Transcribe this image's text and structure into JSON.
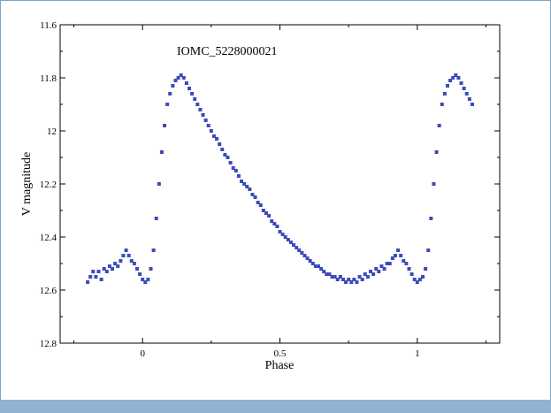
{
  "chart_data": {
    "type": "scatter",
    "title": "IOMC_5228000021",
    "xlabel": "Phase",
    "ylabel": "V magnitude",
    "xlim": [
      -0.3,
      1.3
    ],
    "ylim": [
      11.6,
      12.8
    ],
    "y_inverted": true,
    "x_ticks": [
      "0",
      "0.5",
      "1"
    ],
    "x_tick_values": [
      0,
      0.5,
      1
    ],
    "y_ticks": [
      "11.6",
      "11.8",
      "12",
      "12.2",
      "12.4",
      "12.6",
      "12.8"
    ],
    "y_tick_values": [
      11.6,
      11.8,
      12.0,
      12.2,
      12.4,
      12.6,
      12.8
    ],
    "grid": false,
    "marker_color": "#3b4bb8",
    "series": [
      {
        "points": [
          [
            -0.2,
            12.57
          ],
          [
            -0.19,
            12.55
          ],
          [
            -0.18,
            12.53
          ],
          [
            -0.17,
            12.55
          ],
          [
            -0.16,
            12.53
          ],
          [
            -0.15,
            12.56
          ],
          [
            -0.14,
            12.52
          ],
          [
            -0.13,
            12.53
          ],
          [
            -0.12,
            12.51
          ],
          [
            -0.11,
            12.52
          ],
          [
            -0.1,
            12.5
          ],
          [
            -0.09,
            12.51
          ],
          [
            -0.08,
            12.49
          ],
          [
            -0.07,
            12.47
          ],
          [
            -0.06,
            12.45
          ],
          [
            -0.05,
            12.47
          ],
          [
            -0.04,
            12.49
          ],
          [
            -0.03,
            12.5
          ],
          [
            -0.02,
            12.52
          ],
          [
            -0.01,
            12.54
          ],
          [
            0.0,
            12.56
          ],
          [
            0.01,
            12.57
          ],
          [
            0.02,
            12.56
          ],
          [
            0.03,
            12.52
          ],
          [
            0.04,
            12.45
          ],
          [
            0.05,
            12.33
          ],
          [
            0.06,
            12.2
          ],
          [
            0.07,
            12.08
          ],
          [
            0.08,
            11.98
          ],
          [
            0.09,
            11.9
          ],
          [
            0.1,
            11.86
          ],
          [
            0.11,
            11.83
          ],
          [
            0.12,
            11.81
          ],
          [
            0.13,
            11.8
          ],
          [
            0.14,
            11.79
          ],
          [
            0.15,
            11.8
          ],
          [
            0.16,
            11.82
          ],
          [
            0.17,
            11.84
          ],
          [
            0.18,
            11.86
          ],
          [
            0.19,
            11.88
          ],
          [
            0.2,
            11.9
          ],
          [
            0.21,
            11.92
          ],
          [
            0.22,
            11.94
          ],
          [
            0.23,
            11.96
          ],
          [
            0.24,
            11.98
          ],
          [
            0.25,
            12.0
          ],
          [
            0.26,
            12.02
          ],
          [
            0.27,
            12.03
          ],
          [
            0.28,
            12.05
          ],
          [
            0.29,
            12.07
          ],
          [
            0.3,
            12.09
          ],
          [
            0.31,
            12.1
          ],
          [
            0.32,
            12.12
          ],
          [
            0.33,
            12.14
          ],
          [
            0.34,
            12.15
          ],
          [
            0.35,
            12.17
          ],
          [
            0.36,
            12.19
          ],
          [
            0.37,
            12.2
          ],
          [
            0.38,
            12.21
          ],
          [
            0.39,
            12.22
          ],
          [
            0.4,
            12.24
          ],
          [
            0.41,
            12.25
          ],
          [
            0.42,
            12.27
          ],
          [
            0.43,
            12.28
          ],
          [
            0.44,
            12.3
          ],
          [
            0.45,
            12.31
          ],
          [
            0.46,
            12.32
          ],
          [
            0.47,
            12.34
          ],
          [
            0.48,
            12.35
          ],
          [
            0.49,
            12.36
          ],
          [
            0.5,
            12.38
          ],
          [
            0.51,
            12.39
          ],
          [
            0.52,
            12.4
          ],
          [
            0.53,
            12.41
          ],
          [
            0.54,
            12.42
          ],
          [
            0.55,
            12.43
          ],
          [
            0.56,
            12.44
          ],
          [
            0.57,
            12.45
          ],
          [
            0.58,
            12.46
          ],
          [
            0.59,
            12.47
          ],
          [
            0.6,
            12.48
          ],
          [
            0.61,
            12.49
          ],
          [
            0.62,
            12.5
          ],
          [
            0.63,
            12.51
          ],
          [
            0.64,
            12.51
          ],
          [
            0.65,
            12.52
          ],
          [
            0.66,
            12.53
          ],
          [
            0.67,
            12.54
          ],
          [
            0.68,
            12.54
          ],
          [
            0.69,
            12.55
          ],
          [
            0.7,
            12.55
          ],
          [
            0.71,
            12.56
          ],
          [
            0.72,
            12.55
          ],
          [
            0.73,
            12.56
          ],
          [
            0.74,
            12.57
          ],
          [
            0.75,
            12.56
          ],
          [
            0.76,
            12.57
          ],
          [
            0.77,
            12.56
          ],
          [
            0.78,
            12.57
          ],
          [
            0.79,
            12.55
          ],
          [
            0.8,
            12.56
          ],
          [
            0.81,
            12.54
          ],
          [
            0.82,
            12.55
          ],
          [
            0.83,
            12.53
          ],
          [
            0.84,
            12.54
          ],
          [
            0.85,
            12.52
          ],
          [
            0.86,
            12.53
          ],
          [
            0.87,
            12.51
          ],
          [
            0.88,
            12.52
          ],
          [
            0.89,
            12.5
          ],
          [
            0.9,
            12.5
          ],
          [
            0.91,
            12.48
          ],
          [
            0.92,
            12.47
          ],
          [
            0.93,
            12.45
          ],
          [
            0.94,
            12.47
          ],
          [
            0.95,
            12.49
          ],
          [
            0.96,
            12.5
          ],
          [
            0.97,
            12.52
          ],
          [
            0.98,
            12.54
          ],
          [
            0.99,
            12.56
          ],
          [
            1.0,
            12.57
          ],
          [
            1.01,
            12.56
          ],
          [
            1.02,
            12.55
          ],
          [
            1.03,
            12.52
          ],
          [
            1.04,
            12.45
          ],
          [
            1.05,
            12.33
          ],
          [
            1.06,
            12.2
          ],
          [
            1.07,
            12.08
          ],
          [
            1.08,
            11.98
          ],
          [
            1.09,
            11.9
          ],
          [
            1.1,
            11.86
          ],
          [
            1.11,
            11.83
          ],
          [
            1.12,
            11.81
          ],
          [
            1.13,
            11.8
          ],
          [
            1.14,
            11.79
          ],
          [
            1.15,
            11.8
          ],
          [
            1.16,
            11.82
          ],
          [
            1.17,
            11.84
          ],
          [
            1.18,
            11.86
          ],
          [
            1.19,
            11.88
          ],
          [
            1.2,
            11.9
          ]
        ]
      }
    ]
  }
}
